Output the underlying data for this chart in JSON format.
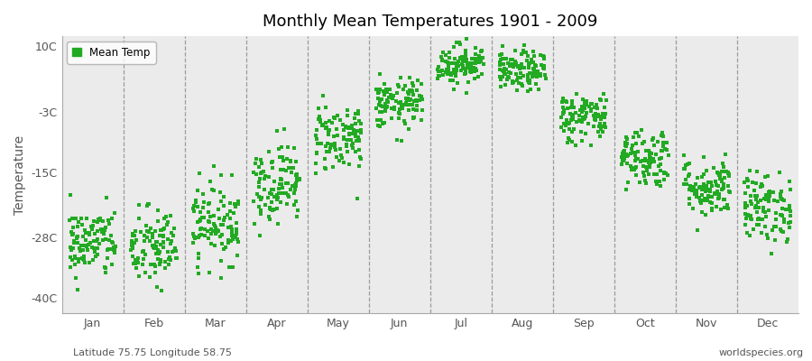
{
  "title": "Monthly Mean Temperatures 1901 - 2009",
  "ylabel": "Temperature",
  "bottom_left": "Latitude 75.75 Longitude 58.75",
  "bottom_right": "worldspecies.org",
  "legend_label": "Mean Temp",
  "marker_color": "#22aa22",
  "background_color": "#ebebeb",
  "yticks": [
    10,
    -3,
    -15,
    -28,
    -40
  ],
  "ytick_labels": [
    "10C",
    "-3C",
    "-15C",
    "-28C",
    "-40C"
  ],
  "ylim": [
    -43,
    12
  ],
  "months": [
    "Jan",
    "Feb",
    "Mar",
    "Apr",
    "May",
    "Jun",
    "Jul",
    "Aug",
    "Sep",
    "Oct",
    "Nov",
    "Dec"
  ],
  "monthly_means": [
    -29,
    -30,
    -25,
    -17,
    -8,
    -1.5,
    6.5,
    5.0,
    -4.0,
    -12,
    -18,
    -22
  ],
  "monthly_stds": [
    3.5,
    4.0,
    4.0,
    4.0,
    3.5,
    2.5,
    2.0,
    2.0,
    2.5,
    3.0,
    3.0,
    3.5
  ],
  "n_years": 109,
  "seed": 42
}
